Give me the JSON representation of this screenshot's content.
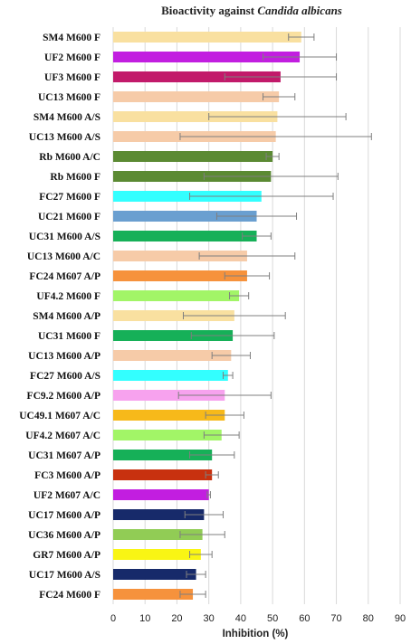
{
  "chart_data": {
    "type": "bar",
    "orientation": "horizontal",
    "title_prefix": "Bioactivity against ",
    "title_italic": "Candida albicans",
    "xlabel": "Inhibition  (%)",
    "ylabel": "",
    "xlim": [
      0,
      90
    ],
    "x_ticks": [
      0,
      10,
      20,
      30,
      40,
      50,
      60,
      70,
      80,
      90
    ],
    "grid": "vertical",
    "legend": "none",
    "bars": [
      {
        "label": "SM4 M600 F",
        "value": 59.0,
        "error": 4.0,
        "color": "#f9e0a0"
      },
      {
        "label": "UF2 M600 F",
        "value": 58.5,
        "error": 11.5,
        "color": "#c21ee0"
      },
      {
        "label": "UF3 M600 F",
        "value": 52.5,
        "error": 17.5,
        "color": "#c21a6a"
      },
      {
        "label": "UC13 M600 F",
        "value": 52.0,
        "error": 5.0,
        "color": "#f6cba8"
      },
      {
        "label": "SM4 M600 A/S",
        "value": 51.5,
        "error": 21.5,
        "color": "#f9e0a0"
      },
      {
        "label": "UC13 M600 A/S",
        "value": 51.0,
        "error": 30.0,
        "color": "#f6cba8"
      },
      {
        "label": "Rb M600 A/C",
        "value": 50.0,
        "error": 2.0,
        "color": "#5b8a33"
      },
      {
        "label": "Rb M600 F",
        "value": 49.5,
        "error": 21.0,
        "color": "#5b8a33"
      },
      {
        "label": "FC27 M600 F",
        "value": 46.5,
        "error": 22.5,
        "color": "#33ffff"
      },
      {
        "label": "UC21 M600 F",
        "value": 45.0,
        "error": 12.5,
        "color": "#6a9fd0"
      },
      {
        "label": "UC31 M600 A/S",
        "value": 45.0,
        "error": 4.5,
        "color": "#16b058"
      },
      {
        "label": "UC13 M600 A/C",
        "value": 42.0,
        "error": 15.0,
        "color": "#f6cba8"
      },
      {
        "label": "FC24 M607 A/P",
        "value": 42.0,
        "error": 7.0,
        "color": "#f6923c"
      },
      {
        "label": "UF4.2 M600 F",
        "value": 39.5,
        "error": 3.0,
        "color": "#a2f567"
      },
      {
        "label": "SM4 M600 A/P",
        "value": 38.0,
        "error": 16.0,
        "color": "#f9e0a0"
      },
      {
        "label": "UC31 M600 F",
        "value": 37.5,
        "error": 13.0,
        "color": "#16b058"
      },
      {
        "label": "UC13 M600 A/P",
        "value": 37.0,
        "error": 6.0,
        "color": "#f6cba8"
      },
      {
        "label": "FC27 M600 A/S",
        "value": 36.0,
        "error": 1.5,
        "color": "#33ffff"
      },
      {
        "label": "FC9.2 M600 A/P",
        "value": 35.0,
        "error": 14.5,
        "color": "#f7a2ee"
      },
      {
        "label": "UC49.1 M607 A/C",
        "value": 35.0,
        "error": 6.0,
        "color": "#f7b91a"
      },
      {
        "label": "UF4.2 M607 A/C",
        "value": 34.0,
        "error": 5.5,
        "color": "#a2f567"
      },
      {
        "label": "UC31 M607 A/P",
        "value": 31.0,
        "error": 7.0,
        "color": "#16b058"
      },
      {
        "label": "FC3 M600 A/P",
        "value": 31.0,
        "error": 2.0,
        "color": "#c8310f"
      },
      {
        "label": "UF2 M607 A/C",
        "value": 30.0,
        "error": 0.5,
        "color": "#c21ee0"
      },
      {
        "label": "UC17 M600 A/P",
        "value": 28.5,
        "error": 6.0,
        "color": "#172a6a"
      },
      {
        "label": "UC36 M600 A/P",
        "value": 28.0,
        "error": 7.0,
        "color": "#91cc55"
      },
      {
        "label": "GR7 M600 A/P",
        "value": 27.5,
        "error": 3.5,
        "color": "#f9f514"
      },
      {
        "label": "UC17 M600 A/S",
        "value": 26.0,
        "error": 3.0,
        "color": "#172a6a"
      },
      {
        "label": "FC24 M600 F",
        "value": 25.0,
        "error": 4.0,
        "color": "#f6923c"
      }
    ]
  }
}
